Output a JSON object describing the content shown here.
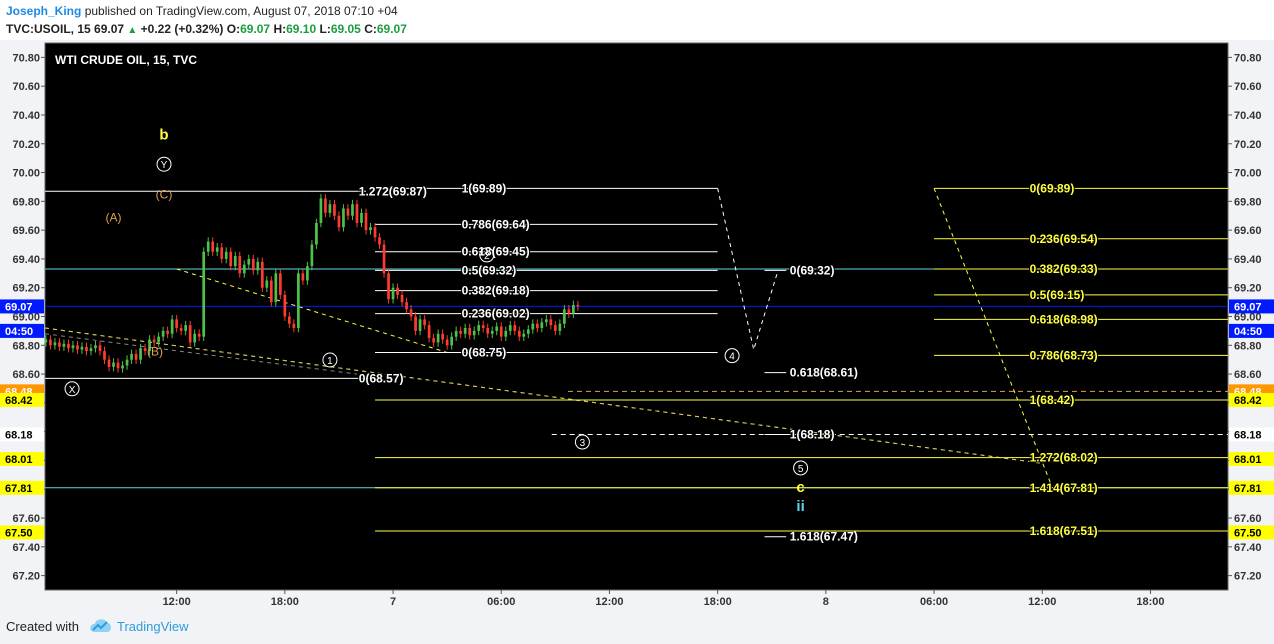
{
  "header": {
    "author": "Joseph_King",
    "published": "published on TradingView.com, August 07, 2018 07:10 +04",
    "symbol": "TVC:USOIL, 15",
    "last": "69.07",
    "change": "+0.22 (+0.32%)",
    "o_label": "O:",
    "o_value": "69.07",
    "h_label": "H:",
    "h_value": "69.10",
    "l_label": "L:",
    "l_value": "69.05",
    "c_label": "C:",
    "c_value": "69.07"
  },
  "footer": {
    "created_with": "Created with",
    "brand": "TradingView"
  },
  "colors": {
    "background": "#000000",
    "up": "#4cc24c",
    "down": "#ff3b2f",
    "fib_white": "#ffffff",
    "fib_yellow": "#ffff3f",
    "cyan": "#5fd7e6",
    "blue": "#0019ff",
    "orange": "#e0a050"
  },
  "chart_data": {
    "type": "candlestick",
    "title": "WTI CRUDE OIL, 15, TVC",
    "y_range": [
      67.1,
      70.9
    ],
    "y_ticks": [
      "67.20",
      "67.40",
      "67.60",
      "67.80",
      "68.00",
      "68.20",
      "68.40",
      "68.60",
      "68.80",
      "69.00",
      "69.20",
      "69.40",
      "69.60",
      "69.80",
      "70.00",
      "70.20",
      "70.40",
      "70.60",
      "70.80"
    ],
    "x_ticks": [
      "12:00",
      "18:00",
      "7",
      "06:00",
      "12:00",
      "18:00",
      "8",
      "06:00",
      "12:00",
      "18:00"
    ],
    "x_ticks_hours": [
      12,
      18,
      24,
      30,
      36,
      42,
      48,
      54,
      60,
      66
    ],
    "x_range_hours": [
      4.7,
      70.3
    ],
    "candles_start_hour": 4.75,
    "candle_interval_hours": 0.25,
    "closes": [
      68.84,
      68.8,
      68.82,
      68.79,
      68.81,
      68.78,
      68.8,
      68.77,
      68.79,
      68.76,
      68.78,
      68.8,
      68.76,
      68.7,
      68.65,
      68.68,
      68.64,
      68.66,
      68.7,
      68.74,
      68.7,
      68.78,
      68.76,
      68.84,
      68.82,
      68.86,
      68.9,
      68.88,
      68.98,
      68.92,
      68.9,
      68.94,
      68.82,
      68.88,
      68.86,
      69.45,
      69.52,
      69.45,
      69.48,
      69.4,
      69.45,
      69.35,
      69.42,
      69.3,
      69.36,
      69.4,
      69.32,
      69.38,
      69.2,
      69.25,
      69.1,
      69.3,
      69.15,
      69.0,
      68.95,
      68.92,
      69.3,
      69.25,
      69.35,
      69.5,
      69.65,
      69.82,
      69.72,
      69.78,
      69.7,
      69.62,
      69.75,
      69.7,
      69.78,
      69.65,
      69.72,
      69.6,
      69.62,
      69.55,
      69.5,
      69.3,
      69.12,
      69.2,
      69.15,
      69.1,
      69.05,
      69.0,
      68.9,
      68.98,
      68.94,
      68.85,
      68.82,
      68.88,
      68.84,
      68.8,
      68.86,
      68.9,
      68.88,
      68.92,
      68.87,
      68.9,
      68.94,
      68.92,
      68.88,
      68.9,
      68.93,
      68.86,
      68.9,
      68.94,
      68.9,
      68.86,
      68.88,
      68.91,
      68.95,
      68.92,
      68.96,
      68.98,
      68.94,
      68.9,
      68.95,
      69.05,
      69.02,
      69.08,
      69.07
    ],
    "price_lines": [
      {
        "value": 69.33,
        "color": "#5fd7e6",
        "start_hour": 4.7
      },
      {
        "value": 67.81,
        "color": "#5fd7e6",
        "start_hour": 4.7
      },
      {
        "value": 69.07,
        "color": "#0019ff",
        "start_hour": 4.7
      },
      {
        "value": 68.48,
        "color": "#e0a050",
        "start_hour": 33.7,
        "dashed": true
      },
      {
        "value": 68.18,
        "color": "#ffffff",
        "start_hour": 32.8,
        "dashed": true
      }
    ],
    "fib_sets": [
      {
        "color": "#ffffff",
        "x_start_hour": 23.0,
        "x_end_hour": 42.0,
        "label_hour": 27.8,
        "levels": [
          {
            "value": 69.89,
            "label": "1(69.89)"
          },
          {
            "value": 69.64,
            "label": "0.786(69.64)"
          },
          {
            "value": 69.45,
            "label": "0.618(69.45)"
          },
          {
            "value": 69.32,
            "label": "0.5(69.32)"
          },
          {
            "value": 69.18,
            "label": "0.382(69.18)"
          },
          {
            "value": 69.02,
            "label": "0.236(69.02)"
          },
          {
            "value": 68.75,
            "label": "0(68.75)"
          }
        ]
      },
      {
        "color": "#ffffff",
        "x_start_hour": 4.7,
        "x_end_hour": 22.5,
        "label_hour": 22.1,
        "levels": [
          {
            "value": 69.87,
            "label": "1.272(69.87)"
          },
          {
            "value": 68.57,
            "label": "0(68.57)"
          }
        ]
      },
      {
        "color": "#ffffff",
        "x_start_hour": 44.6,
        "x_end_hour": 45.8,
        "label_hour": 46.0,
        "levels": [
          {
            "value": 69.32,
            "label": "0(69.32)"
          },
          {
            "value": 68.61,
            "label": "0.618(68.61)"
          },
          {
            "value": 68.18,
            "label": "1(68.18)"
          },
          {
            "value": 67.47,
            "label": "1.618(67.47)"
          }
        ]
      },
      {
        "color": "#ffff3f",
        "x_start_hour": 54.0,
        "x_end_hour": 70.3,
        "label_hour": 59.3,
        "levels": [
          {
            "value": 69.89,
            "label": "0(69.89)"
          },
          {
            "value": 69.54,
            "label": "0.236(69.54)"
          },
          {
            "value": 69.33,
            "label": "0.382(69.33)"
          },
          {
            "value": 69.15,
            "label": "0.5(69.15)"
          },
          {
            "value": 68.98,
            "label": "0.618(68.98)"
          },
          {
            "value": 68.73,
            "label": "0.786(68.73)"
          }
        ]
      },
      {
        "color": "#ffff3f",
        "x_start_hour": 23.0,
        "x_end_hour": 70.3,
        "label_hour": 59.3,
        "levels": [
          {
            "value": 68.42,
            "label": "1(68.42)"
          },
          {
            "value": 68.02,
            "label": "1.272(68.02)"
          },
          {
            "value": 67.81,
            "label": "1.414(67.81)"
          },
          {
            "value": 67.51,
            "label": "1.618(67.51)"
          }
        ]
      }
    ],
    "trend_lines": [
      {
        "color": "#ffff3f",
        "from": [
          4.7,
          68.92
        ],
        "to": [
          60.0,
          67.98
        ]
      },
      {
        "color": "#d0c060",
        "from": [
          4.7,
          68.92
        ],
        "to": [
          60.0,
          67.98
        ]
      },
      {
        "color": "#ffff3f",
        "from": [
          12.0,
          69.33
        ],
        "to": [
          27.0,
          68.75
        ]
      },
      {
        "color": "#ffff3f",
        "from": [
          54.0,
          69.89
        ],
        "to": [
          60.5,
          67.83
        ]
      },
      {
        "color": "#888888",
        "from": [
          4.7,
          68.88
        ],
        "to": [
          22.0,
          68.6
        ]
      }
    ],
    "projection_path": [
      [
        42.0,
        69.89
      ],
      [
        44.0,
        68.77
      ],
      [
        45.3,
        69.3
      ]
    ],
    "wave_labels": [
      {
        "text": "b",
        "hour": 11.3,
        "price": 70.23,
        "color": "#ffff3f",
        "bold": true
      },
      {
        "text": "Y",
        "hour": 11.3,
        "price": 70.03,
        "color": "#ffffff",
        "circled": true
      },
      {
        "text": "(C)",
        "hour": 11.3,
        "price": 69.82,
        "color": "#e0a050"
      },
      {
        "text": "(A)",
        "hour": 8.5,
        "price": 69.66,
        "color": "#e0a050"
      },
      {
        "text": "(B)",
        "hour": 10.8,
        "price": 68.73,
        "color": "#e0a050"
      },
      {
        "text": "X",
        "hour": 6.2,
        "price": 68.47,
        "color": "#ffffff",
        "circled": true
      },
      {
        "text": "1",
        "hour": 20.5,
        "price": 68.67,
        "color": "#ffffff",
        "circled": true
      },
      {
        "text": "2",
        "hour": 29.2,
        "price": 69.4,
        "color": "#ffffff",
        "circled": true
      },
      {
        "text": "3",
        "hour": 34.5,
        "price": 68.1,
        "color": "#ffffff",
        "circled": true
      },
      {
        "text": "4",
        "hour": 42.8,
        "price": 68.7,
        "color": "#ffffff",
        "circled": true
      },
      {
        "text": "5",
        "hour": 46.6,
        "price": 67.92,
        "color": "#ffffff",
        "circled": true
      },
      {
        "text": "c",
        "hour": 46.6,
        "price": 67.78,
        "color": "#ffff3f",
        "bold": true
      },
      {
        "text": "ii",
        "hour": 46.6,
        "price": 67.65,
        "color": "#5fd7e6",
        "bold": true
      }
    ],
    "axis_badges": [
      {
        "text": "69.07",
        "value": 69.07,
        "bg": "#0019ff",
        "fg": "#ffffff",
        "both_axes": true
      },
      {
        "text": "04:50",
        "value": 68.9,
        "bg": "#0019ff",
        "fg": "#ffffff",
        "both_axes": true
      },
      {
        "text": "68.48",
        "value": 68.48,
        "bg": "#ff9800",
        "fg": "#ffffff",
        "both_axes": true
      },
      {
        "text": "68.42",
        "value": 68.42,
        "bg": "#ffff00",
        "fg": "#000000",
        "both_axes": true
      },
      {
        "text": "68.18",
        "value": 68.18,
        "bg": "#ffffff",
        "fg": "#000000",
        "both_axes": true
      },
      {
        "text": "68.01",
        "value": 68.01,
        "bg": "#ffff00",
        "fg": "#000000",
        "both_axes": true
      },
      {
        "text": "67.81",
        "value": 67.81,
        "bg": "#ffff00",
        "fg": "#000000",
        "both_axes": true
      },
      {
        "text": "67.50",
        "value": 67.5,
        "bg": "#ffff00",
        "fg": "#000000",
        "both_axes": true
      }
    ]
  }
}
